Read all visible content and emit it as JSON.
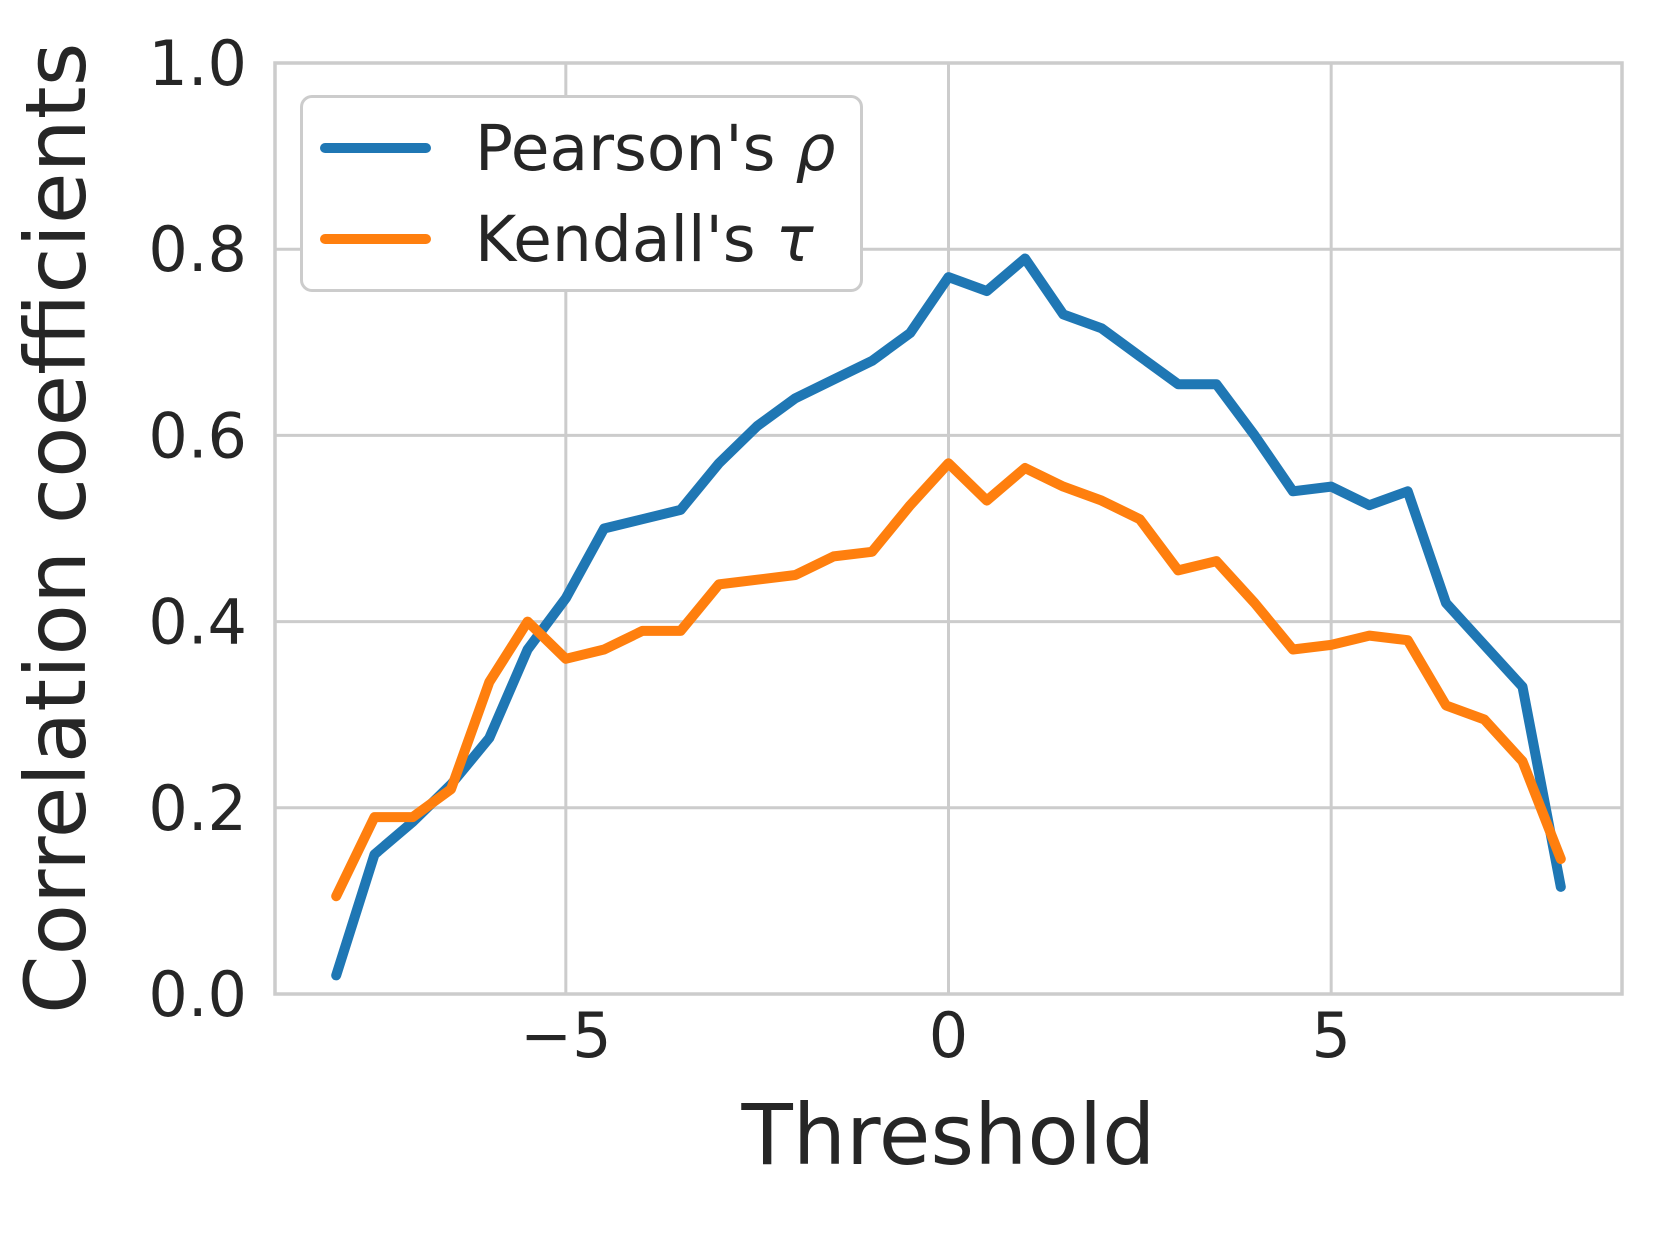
{
  "chart_data": {
    "type": "line",
    "title": "",
    "xlabel": "Threshold",
    "ylabel": "Correlation coefficients",
    "xlim": [
      -8.8,
      8.8
    ],
    "ylim": [
      0.0,
      1.0
    ],
    "grid": true,
    "legend_position": "upper left",
    "x_ticks": {
      "values": [
        -5,
        0,
        5
      ],
      "labels": [
        "−5",
        "0",
        "5"
      ]
    },
    "y_ticks": {
      "values": [
        0.0,
        0.2,
        0.4,
        0.6,
        0.8,
        1.0
      ],
      "labels": [
        "0.0",
        "0.2",
        "0.4",
        "0.6",
        "0.8",
        "1.0"
      ]
    },
    "x": [
      -8,
      -7.5,
      -7,
      -6.5,
      -6,
      -5.5,
      -5,
      -4.5,
      -4,
      -3.5,
      -3,
      -2.5,
      -2,
      -1.5,
      -1,
      -0.5,
      0,
      0.5,
      1,
      1.5,
      2,
      2.5,
      3,
      3.5,
      4,
      4.5,
      5,
      5.5,
      6,
      6.5,
      7,
      7.5,
      8
    ],
    "series": [
      {
        "name": "Pearson's ρ",
        "label_text": "Pearson's",
        "label_symbol": "ρ",
        "color": "#1f77b4",
        "values": [
          0.02,
          0.15,
          0.185,
          0.225,
          0.275,
          0.37,
          0.425,
          0.5,
          0.51,
          0.52,
          0.57,
          0.61,
          0.64,
          0.66,
          0.68,
          0.71,
          0.77,
          0.755,
          0.79,
          0.73,
          0.715,
          0.685,
          0.655,
          0.655,
          0.6,
          0.54,
          0.545,
          0.525,
          0.54,
          0.42,
          0.375,
          0.33,
          0.115
        ]
      },
      {
        "name": "Kendall's τ",
        "label_text": "Kendall's",
        "label_symbol": "τ",
        "color": "#ff7f0e",
        "values": [
          0.105,
          0.19,
          0.19,
          0.22,
          0.335,
          0.4,
          0.36,
          0.37,
          0.39,
          0.39,
          0.44,
          0.445,
          0.45,
          0.47,
          0.475,
          0.525,
          0.57,
          0.53,
          0.565,
          0.545,
          0.53,
          0.51,
          0.455,
          0.465,
          0.42,
          0.37,
          0.375,
          0.385,
          0.38,
          0.31,
          0.295,
          0.25,
          0.145
        ]
      }
    ]
  },
  "style": {
    "text_color": "#262626",
    "grid_color": "#cccccc",
    "spine_color": "#cccccc",
    "background": "#ffffff",
    "line_width": 10,
    "tick_font_size": 62
  }
}
